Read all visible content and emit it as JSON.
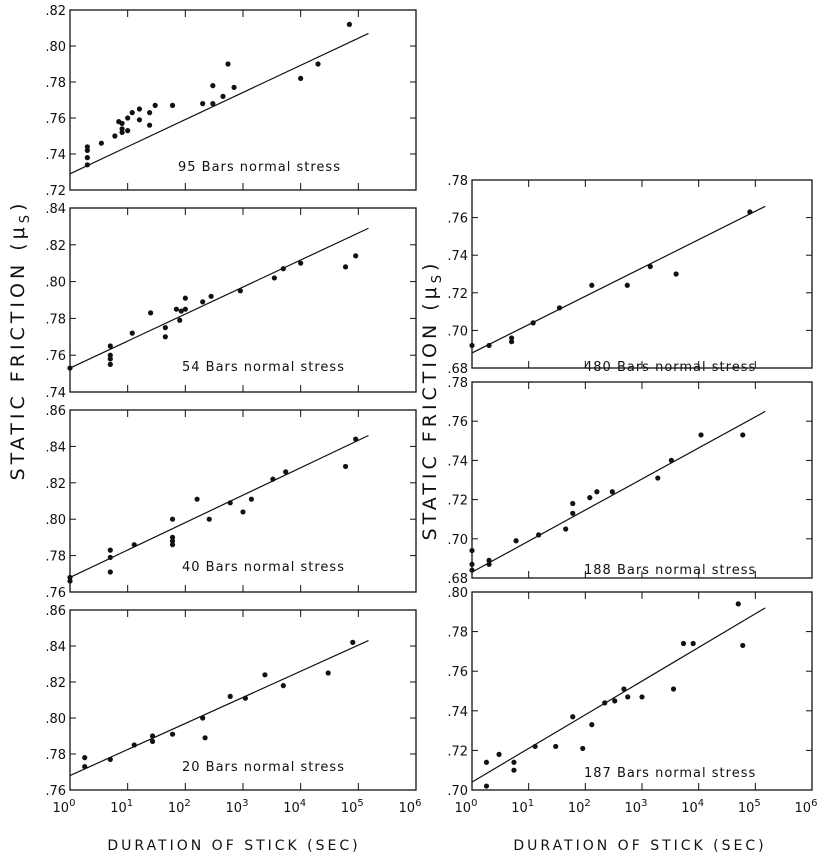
{
  "chart_data": [
    {
      "type": "scatter",
      "label": "95 Bars normal stress",
      "xscale": "log",
      "xlim": [
        1,
        1000000
      ],
      "ylim": [
        0.72,
        0.82
      ],
      "yticks": [
        ".72",
        ".74",
        ".76",
        ".78",
        ".80",
        ".82"
      ],
      "x": [
        2,
        2,
        2,
        2,
        3.5,
        6,
        7,
        8,
        8,
        8,
        10,
        10,
        12,
        16,
        16,
        24,
        24,
        30,
        60,
        200,
        300,
        300,
        450,
        550,
        700,
        10000,
        20000,
        70000
      ],
      "y": [
        0.744,
        0.742,
        0.738,
        0.734,
        0.746,
        0.75,
        0.758,
        0.757,
        0.754,
        0.752,
        0.76,
        0.753,
        0.763,
        0.765,
        0.759,
        0.763,
        0.756,
        0.767,
        0.767,
        0.768,
        0.778,
        0.768,
        0.772,
        0.79,
        0.777,
        0.782,
        0.79,
        0.812
      ],
      "fit": {
        "x": [
          1,
          150000
        ],
        "y": [
          0.729,
          0.807
        ]
      }
    },
    {
      "type": "scatter",
      "label": "54 Bars normal stress",
      "xscale": "log",
      "xlim": [
        1,
        1000000
      ],
      "ylim": [
        0.74,
        0.84
      ],
      "yticks": [
        ".74",
        ".76",
        ".78",
        ".80",
        ".82",
        ".84"
      ],
      "x": [
        1,
        5,
        5,
        5,
        5,
        12,
        25,
        45,
        45,
        70,
        80,
        85,
        100,
        100,
        200,
        280,
        900,
        3500,
        5000,
        10000,
        60000,
        90000
      ],
      "y": [
        0.753,
        0.765,
        0.76,
        0.758,
        0.755,
        0.772,
        0.783,
        0.775,
        0.77,
        0.785,
        0.779,
        0.784,
        0.791,
        0.785,
        0.789,
        0.792,
        0.795,
        0.802,
        0.807,
        0.81,
        0.808,
        0.814
      ],
      "fit": {
        "x": [
          1,
          150000
        ],
        "y": [
          0.753,
          0.829
        ]
      }
    },
    {
      "type": "scatter",
      "label": "40 Bars normal stress",
      "xscale": "log",
      "xlim": [
        1,
        1000000
      ],
      "ylim": [
        0.76,
        0.86
      ],
      "yticks": [
        ".76",
        ".78",
        ".80",
        ".82",
        ".84",
        ".86"
      ],
      "x": [
        1,
        1,
        5,
        5,
        5,
        13,
        60,
        60,
        60,
        60,
        160,
        260,
        600,
        1000,
        1400,
        3300,
        5500,
        60000,
        90000
      ],
      "y": [
        0.768,
        0.766,
        0.783,
        0.779,
        0.771,
        0.786,
        0.8,
        0.79,
        0.788,
        0.786,
        0.811,
        0.8,
        0.809,
        0.804,
        0.811,
        0.822,
        0.826,
        0.829,
        0.844
      ],
      "fit": {
        "x": [
          1,
          150000
        ],
        "y": [
          0.768,
          0.846
        ]
      }
    },
    {
      "type": "scatter",
      "label": "20 Bars normal stress",
      "xscale": "log",
      "xlim": [
        1,
        1000000
      ],
      "ylim": [
        0.76,
        0.86
      ],
      "yticks": [
        ".76",
        ".78",
        ".80",
        ".82",
        ".84",
        ".86"
      ],
      "x": [
        1.8,
        1.8,
        5,
        13,
        27,
        27,
        60,
        200,
        220,
        600,
        1100,
        2400,
        5000,
        30000,
        80000
      ],
      "y": [
        0.778,
        0.773,
        0.777,
        0.785,
        0.79,
        0.787,
        0.791,
        0.8,
        0.789,
        0.812,
        0.811,
        0.824,
        0.818,
        0.825,
        0.842
      ],
      "fit": {
        "x": [
          1,
          150000
        ],
        "y": [
          0.768,
          0.843
        ]
      }
    },
    {
      "type": "scatter",
      "label": "480 Bars normal stress",
      "xscale": "log",
      "xlim": [
        1,
        1000000
      ],
      "ylim": [
        0.68,
        0.78
      ],
      "yticks": [
        ".68",
        ".70",
        ".72",
        ".74",
        ".76",
        ".78"
      ],
      "x": [
        1,
        2,
        5,
        5,
        12,
        35,
        130,
        550,
        1400,
        4000,
        80000
      ],
      "y": [
        0.692,
        0.692,
        0.696,
        0.694,
        0.704,
        0.712,
        0.724,
        0.724,
        0.734,
        0.73,
        0.763
      ],
      "fit": {
        "x": [
          1,
          150000
        ],
        "y": [
          0.688,
          0.766
        ]
      }
    },
    {
      "type": "scatter",
      "label": "188 Bars normal stress",
      "xscale": "log",
      "xlim": [
        1,
        1000000
      ],
      "ylim": [
        0.68,
        0.78
      ],
      "yticks": [
        ".68",
        ".70",
        ".72",
        ".74",
        ".76",
        ".78"
      ],
      "x": [
        1,
        1,
        1,
        2,
        2,
        6,
        15,
        45,
        60,
        60,
        120,
        160,
        300,
        1900,
        3300,
        11000,
        60000
      ],
      "y": [
        0.694,
        0.687,
        0.684,
        0.689,
        0.687,
        0.699,
        0.702,
        0.705,
        0.718,
        0.713,
        0.721,
        0.724,
        0.724,
        0.731,
        0.74,
        0.753,
        0.753
      ],
      "fit": {
        "x": [
          1,
          150000
        ],
        "y": [
          0.683,
          0.765
        ]
      }
    },
    {
      "type": "scatter",
      "label": "187 Bars normal stress",
      "xscale": "log",
      "xlim": [
        1,
        1000000
      ],
      "ylim": [
        0.7,
        0.8
      ],
      "yticks": [
        ".70",
        ".72",
        ".74",
        ".76",
        ".78",
        ".80"
      ],
      "x": [
        1.8,
        1.8,
        3,
        5.5,
        5.5,
        13,
        30,
        60,
        90,
        130,
        220,
        330,
        480,
        560,
        1000,
        3600,
        5400,
        8000,
        50000,
        60000
      ],
      "y": [
        0.714,
        0.702,
        0.718,
        0.714,
        0.71,
        0.722,
        0.722,
        0.737,
        0.721,
        0.733,
        0.744,
        0.745,
        0.751,
        0.747,
        0.747,
        0.751,
        0.774,
        0.774,
        0.794,
        0.773
      ],
      "fit": {
        "x": [
          1,
          150000
        ],
        "y": [
          0.704,
          0.792
        ]
      }
    }
  ],
  "axes": {
    "ylabel": "STATIC FRICTION (μ",
    "ylabel_sub": "S",
    "ylabel_close": ")",
    "xlabel": "DURATION OF STICK (SEC)",
    "xtick_base": "10",
    "xtick_exps": [
      "0",
      "1",
      "2",
      "3",
      "4",
      "5",
      "6"
    ]
  }
}
